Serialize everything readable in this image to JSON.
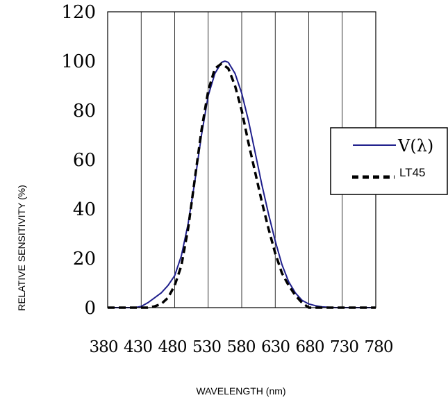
{
  "chart_data": {
    "type": "line",
    "title": "",
    "xlabel": "WAVELENGTH (nm)",
    "ylabel": "RELATIVE SENSITIVITY (%)",
    "xlim": [
      380,
      780
    ],
    "ylim": [
      0,
      120
    ],
    "x_ticks": [
      380,
      430,
      480,
      530,
      580,
      630,
      680,
      730,
      780
    ],
    "y_ticks": [
      0,
      20,
      40,
      60,
      80,
      100,
      120
    ],
    "x_tick_labels": [
      "380",
      "430",
      "480",
      "530",
      "580",
      "630",
      "680",
      "730",
      "780"
    ],
    "y_tick_labels": [
      "0",
      "20",
      "40",
      "60",
      "80",
      "100",
      "120"
    ],
    "grid": "vertical",
    "legend": {
      "placement": "right",
      "entries": [
        "V(λ)",
        "LT45"
      ]
    },
    "series": [
      {
        "name": "V(λ)",
        "color": "#1f1f8c",
        "style": "solid",
        "x": [
          380,
          400,
          420,
          430,
          440,
          450,
          460,
          470,
          480,
          490,
          500,
          510,
          520,
          530,
          540,
          550,
          555,
          560,
          570,
          580,
          590,
          600,
          610,
          620,
          630,
          640,
          650,
          660,
          670,
          680,
          690,
          700,
          720,
          750,
          780
        ],
        "y": [
          0,
          0,
          0,
          0.5,
          2,
          4,
          6,
          9,
          13,
          21,
          34,
          51,
          70,
          86,
          95,
          99.5,
          100,
          99.5,
          95,
          87,
          76,
          63,
          50,
          38,
          27,
          17.5,
          10.5,
          6,
          3,
          1.5,
          0.8,
          0.3,
          0,
          0,
          0
        ]
      },
      {
        "name": "LT45",
        "color": "#000000",
        "style": "dashed",
        "x": [
          380,
          400,
          420,
          430,
          440,
          450,
          460,
          470,
          480,
          490,
          500,
          510,
          520,
          530,
          540,
          550,
          560,
          570,
          580,
          590,
          600,
          610,
          620,
          630,
          640,
          650,
          660,
          670,
          680,
          690,
          700,
          720,
          750,
          780
        ],
        "y": [
          0,
          0,
          0,
          0,
          0,
          0.5,
          1.5,
          4,
          9,
          17,
          32,
          52,
          72,
          88,
          97,
          99,
          97,
          90,
          80,
          67,
          55,
          43,
          32,
          22,
          14,
          9,
          5,
          2,
          0,
          0,
          0,
          0,
          0,
          0
        ]
      }
    ]
  }
}
